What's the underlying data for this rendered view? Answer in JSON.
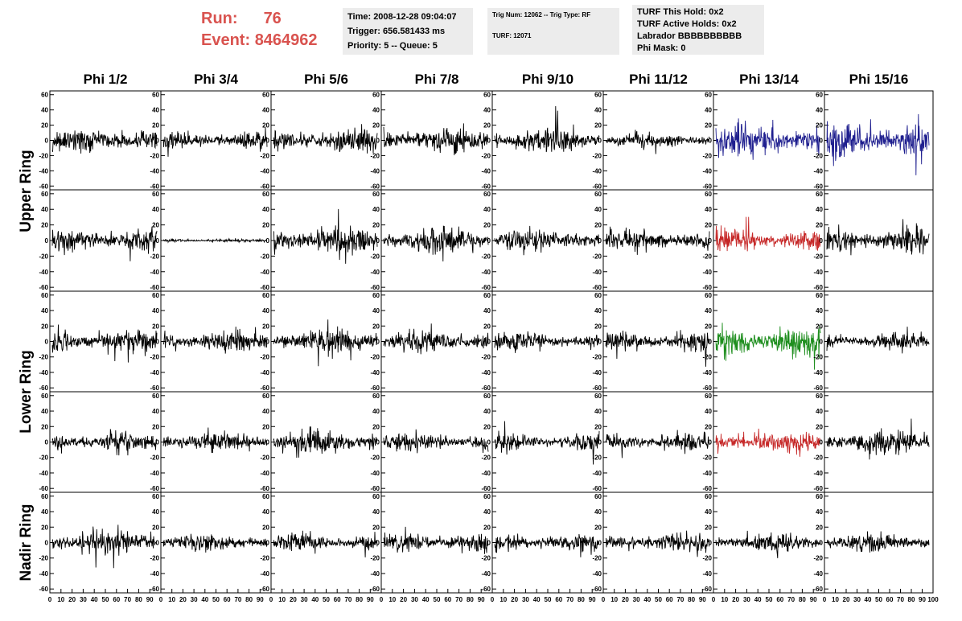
{
  "header": {
    "run_label": "Run:",
    "run_value": "76",
    "event_label": "Event:",
    "event_value": "8464962",
    "time": "Time: 2008-12-28 09:04:07",
    "trigger": "Trigger: 656.581433 ms",
    "priority": "Priority: 5 -- Queue: 5",
    "trig_num": "Trig Num: 12062 -- Trig Type: RF",
    "turf": "TURF: 12071",
    "turf_hold": "TURF This Hold: 0x2",
    "turf_active": "TURF Active Holds: 0x2",
    "labrador": "Labrador BBBBBBBBBB",
    "phi_mask": "Phi Mask: 0"
  },
  "chart_data": {
    "type": "line",
    "columns": [
      "Phi 1/2",
      "Phi 3/4",
      "Phi 5/6",
      "Phi 7/8",
      "Phi 9/10",
      "Phi 11/12",
      "Phi 13/14",
      "Phi 15/16"
    ],
    "ring_labels": [
      {
        "label": "Upper Ring",
        "rows": [
          0,
          1
        ]
      },
      {
        "label": "Lower Ring",
        "rows": [
          2,
          3
        ]
      },
      {
        "label": "Nadir Ring",
        "rows": [
          4
        ]
      }
    ],
    "ylim": [
      -65,
      65
    ],
    "y_ticks": [
      -60,
      -40,
      -20,
      0,
      20,
      40,
      60
    ],
    "xlim": [
      0,
      100
    ],
    "x_ticks": [
      0,
      10,
      20,
      30,
      40,
      50,
      60,
      70,
      80,
      90,
      100
    ],
    "samples": 260,
    "default_color": "#000000",
    "highlight": [
      {
        "row": 0,
        "col": 6,
        "color": "#1f1f8f"
      },
      {
        "row": 0,
        "col": 7,
        "color": "#1f1f8f"
      },
      {
        "row": 1,
        "col": 6,
        "color": "#c62828"
      },
      {
        "row": 2,
        "col": 6,
        "color": "#1e8e1e"
      },
      {
        "row": 3,
        "col": 6,
        "color": "#c62828"
      }
    ],
    "amplitudes": [
      [
        16,
        12,
        15,
        17,
        16,
        9,
        20,
        22
      ],
      [
        14,
        2,
        18,
        15,
        14,
        13,
        15,
        16
      ],
      [
        15,
        13,
        17,
        14,
        12,
        12,
        20,
        11
      ],
      [
        12,
        13,
        15,
        12,
        11,
        11,
        13,
        15
      ],
      [
        15,
        11,
        12,
        12,
        11,
        11,
        11,
        11
      ]
    ]
  }
}
